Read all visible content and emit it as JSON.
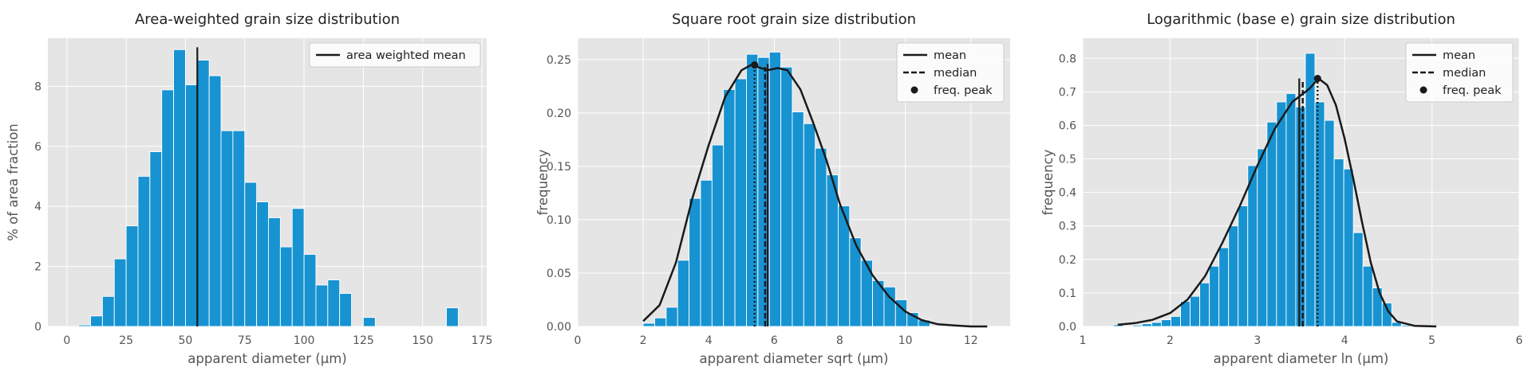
{
  "colors": {
    "bar": "#1793d1",
    "axes_bg": "#e5e5e5",
    "grid": "#ffffff",
    "line": "#1a1a1a",
    "text": "#555555",
    "title": "#222222"
  },
  "chart_data": [
    {
      "type": "bar",
      "title": "Area-weighted grain size distribution",
      "xlabel": "apparent diameter (μm)",
      "ylabel": "% of area fraction",
      "xlim": [
        -8,
        177
      ],
      "ylim": [
        0,
        9.6
      ],
      "xticks": [
        0,
        25,
        50,
        75,
        100,
        125,
        150,
        175
      ],
      "yticks": [
        0,
        2,
        4,
        6,
        8
      ],
      "bin_width": 5,
      "bins": [
        [
          5,
          10,
          0.05
        ],
        [
          10,
          15,
          0.35
        ],
        [
          15,
          20,
          1.0
        ],
        [
          20,
          25,
          2.25
        ],
        [
          25,
          30,
          3.35
        ],
        [
          30,
          35,
          5.0
        ],
        [
          35,
          40,
          5.82
        ],
        [
          40,
          45,
          7.88
        ],
        [
          45,
          50,
          9.22
        ],
        [
          50,
          55,
          8.05
        ],
        [
          55,
          60,
          8.87
        ],
        [
          60,
          65,
          8.35
        ],
        [
          65,
          70,
          6.52
        ],
        [
          70,
          75,
          6.52
        ],
        [
          75,
          80,
          4.8
        ],
        [
          80,
          85,
          4.15
        ],
        [
          85,
          90,
          3.62
        ],
        [
          90,
          95,
          2.65
        ],
        [
          95,
          100,
          3.93
        ],
        [
          100,
          105,
          2.4
        ],
        [
          105,
          110,
          1.38
        ],
        [
          110,
          115,
          1.55
        ],
        [
          115,
          120,
          1.1
        ],
        [
          125,
          130,
          0.3
        ],
        [
          160,
          165,
          0.62
        ]
      ],
      "vlines": [
        {
          "x": 55,
          "ymax": 9.3,
          "style": "solid",
          "series": "area weighted mean"
        }
      ],
      "legend": {
        "position": "top-right",
        "entries": [
          {
            "label": "area weighted mean",
            "style": "solid"
          }
        ]
      },
      "grid": true
    },
    {
      "type": "bar",
      "title": "Square root grain size distribution",
      "xlabel": "apparent diameter sqrt (μm)",
      "ylabel": "frequency",
      "xlim": [
        0,
        13.2
      ],
      "ylim": [
        0,
        0.27
      ],
      "xticks": [
        0,
        2,
        4,
        6,
        8,
        10,
        12
      ],
      "yticks": [
        0,
        0.05,
        0.1,
        0.15,
        0.2,
        0.25
      ],
      "ytick_labels": [
        "0.00",
        "0.05",
        "0.10",
        "0.15",
        "0.20",
        "0.25"
      ],
      "bin_width": 0.35,
      "bins": [
        [
          2.0,
          2.35,
          0.003
        ],
        [
          2.35,
          2.7,
          0.008
        ],
        [
          2.7,
          3.05,
          0.018
        ],
        [
          3.05,
          3.4,
          0.062
        ],
        [
          3.4,
          3.75,
          0.12
        ],
        [
          3.75,
          4.1,
          0.137
        ],
        [
          4.1,
          4.45,
          0.17
        ],
        [
          4.45,
          4.8,
          0.222
        ],
        [
          4.8,
          5.15,
          0.232
        ],
        [
          5.15,
          5.5,
          0.255
        ],
        [
          5.5,
          5.85,
          0.252
        ],
        [
          5.85,
          6.2,
          0.257
        ],
        [
          6.2,
          6.55,
          0.243
        ],
        [
          6.55,
          6.9,
          0.201
        ],
        [
          6.9,
          7.25,
          0.19
        ],
        [
          7.25,
          7.6,
          0.167
        ],
        [
          7.6,
          7.95,
          0.142
        ],
        [
          7.95,
          8.3,
          0.113
        ],
        [
          8.3,
          8.65,
          0.083
        ],
        [
          8.65,
          9.0,
          0.062
        ],
        [
          9.0,
          9.35,
          0.043
        ],
        [
          9.35,
          9.7,
          0.037
        ],
        [
          9.7,
          10.05,
          0.025
        ],
        [
          10.05,
          10.4,
          0.013
        ],
        [
          10.4,
          10.75,
          0.006
        ]
      ],
      "kde": {
        "x": [
          2.0,
          2.5,
          3.0,
          3.5,
          4.0,
          4.5,
          5.0,
          5.3,
          5.5,
          5.8,
          6.1,
          6.4,
          6.8,
          7.2,
          7.6,
          8.0,
          8.5,
          9.0,
          9.5,
          10.0,
          10.5,
          11.0,
          11.5,
          12.0,
          12.5
        ],
        "y": [
          0.005,
          0.02,
          0.06,
          0.12,
          0.17,
          0.215,
          0.24,
          0.245,
          0.243,
          0.24,
          0.242,
          0.24,
          0.222,
          0.19,
          0.155,
          0.115,
          0.076,
          0.048,
          0.028,
          0.014,
          0.006,
          0.002,
          0.001,
          0.0,
          0.0
        ]
      },
      "vlines": [
        {
          "x": 5.8,
          "ymax": 0.246,
          "style": "solid",
          "series": "mean"
        },
        {
          "x": 5.72,
          "ymax": 0.243,
          "style": "dashed",
          "series": "median"
        },
        {
          "x": 5.4,
          "ymax": 0.245,
          "style": "dotted",
          "series": "freq. peak"
        }
      ],
      "peak_point": {
        "x": 5.4,
        "y": 0.245
      },
      "legend": {
        "position": "top-right",
        "entries": [
          {
            "label": "mean",
            "style": "solid"
          },
          {
            "label": "median",
            "style": "dashed"
          },
          {
            "label": "freq. peak",
            "style": "dot"
          }
        ]
      },
      "grid": true
    },
    {
      "type": "bar",
      "title": "Logarithmic (base e) grain size distribution",
      "xlabel": "apparent diameter ln (μm)",
      "ylabel": "frequency",
      "xlim": [
        1,
        6
      ],
      "ylim": [
        0,
        0.86
      ],
      "xticks": [
        1,
        2,
        3,
        4,
        5,
        6
      ],
      "yticks": [
        0,
        0.1,
        0.2,
        0.3,
        0.4,
        0.5,
        0.6,
        0.7,
        0.8
      ],
      "ytick_labels": [
        "0.0",
        "0.1",
        "0.2",
        "0.3",
        "0.4",
        "0.5",
        "0.6",
        "0.7",
        "0.8"
      ],
      "bin_width": 0.11,
      "bins": [
        [
          1.35,
          1.46,
          0.005
        ],
        [
          1.57,
          1.68,
          0.004
        ],
        [
          1.68,
          1.79,
          0.008
        ],
        [
          1.79,
          1.9,
          0.012
        ],
        [
          1.9,
          2.01,
          0.02
        ],
        [
          2.01,
          2.12,
          0.03
        ],
        [
          2.12,
          2.23,
          0.075
        ],
        [
          2.23,
          2.34,
          0.09
        ],
        [
          2.34,
          2.45,
          0.13
        ],
        [
          2.45,
          2.56,
          0.18
        ],
        [
          2.56,
          2.67,
          0.235
        ],
        [
          2.67,
          2.78,
          0.3
        ],
        [
          2.78,
          2.89,
          0.36
        ],
        [
          2.89,
          3.0,
          0.48
        ],
        [
          3.0,
          3.11,
          0.53
        ],
        [
          3.11,
          3.22,
          0.61
        ],
        [
          3.22,
          3.33,
          0.67
        ],
        [
          3.33,
          3.44,
          0.695
        ],
        [
          3.44,
          3.55,
          0.655
        ],
        [
          3.55,
          3.66,
          0.815
        ],
        [
          3.66,
          3.77,
          0.67
        ],
        [
          3.77,
          3.88,
          0.615
        ],
        [
          3.88,
          3.99,
          0.5
        ],
        [
          3.99,
          4.1,
          0.47
        ],
        [
          4.1,
          4.21,
          0.28
        ],
        [
          4.21,
          4.32,
          0.18
        ],
        [
          4.32,
          4.43,
          0.115
        ],
        [
          4.43,
          4.54,
          0.07
        ],
        [
          4.54,
          4.65,
          0.012
        ],
        [
          4.65,
          4.76,
          0.004
        ]
      ],
      "kde": {
        "x": [
          1.4,
          1.6,
          1.8,
          2.0,
          2.2,
          2.4,
          2.6,
          2.8,
          3.0,
          3.2,
          3.4,
          3.6,
          3.7,
          3.8,
          3.9,
          4.0,
          4.1,
          4.2,
          4.3,
          4.4,
          4.5,
          4.6,
          4.8,
          5.05
        ],
        "y": [
          0.005,
          0.01,
          0.02,
          0.04,
          0.08,
          0.15,
          0.25,
          0.36,
          0.48,
          0.59,
          0.67,
          0.71,
          0.74,
          0.72,
          0.66,
          0.56,
          0.44,
          0.31,
          0.19,
          0.1,
          0.045,
          0.015,
          0.002,
          0.0
        ]
      },
      "vlines": [
        {
          "x": 3.48,
          "ymax": 0.74,
          "style": "solid",
          "series": "mean"
        },
        {
          "x": 3.52,
          "ymax": 0.73,
          "style": "dashed",
          "series": "median"
        },
        {
          "x": 3.69,
          "ymax": 0.74,
          "style": "dotted",
          "series": "freq. peak"
        }
      ],
      "peak_point": {
        "x": 3.69,
        "y": 0.74
      },
      "legend": {
        "position": "top-right",
        "entries": [
          {
            "label": "mean",
            "style": "solid"
          },
          {
            "label": "median",
            "style": "dashed"
          },
          {
            "label": "freq. peak",
            "style": "dot"
          }
        ]
      },
      "grid": true
    }
  ]
}
